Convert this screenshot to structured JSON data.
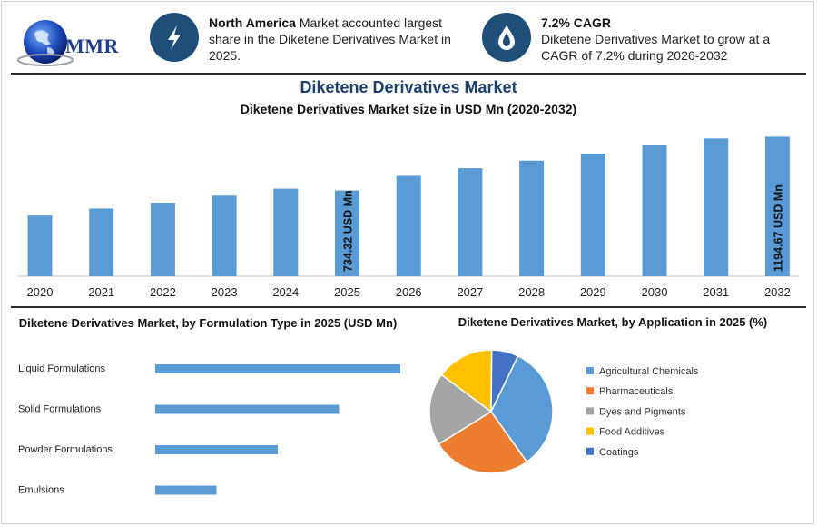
{
  "logo": {
    "text": "MMR"
  },
  "kpis": [
    {
      "icon": "lightning-icon",
      "highlight": "North America",
      "text": " Market accounted largest share in the Diketene Derivatives Market in 2025."
    },
    {
      "icon": "droplet-icon",
      "highlight": "7.2% CAGR",
      "text": "Diketene Derivatives Market to grow at a CAGR of 7.2% during 2026-2032"
    }
  ],
  "header": {
    "title": "Diketene Derivatives Market",
    "subtitle": "Diketene Derivatives Market size in USD Mn (2020-2032)"
  },
  "colors": {
    "bar": "#5b9bd5",
    "accent": "#1f4e79"
  },
  "chart_data": [
    {
      "type": "bar",
      "title": "Diketene Derivatives Market size in USD Mn (2020-2032)",
      "categories": [
        "2020",
        "2021",
        "2022",
        "2023",
        "2024",
        "2025",
        "2026",
        "2027",
        "2028",
        "2029",
        "2030",
        "2031",
        "2032"
      ],
      "values": [
        520,
        580,
        630,
        690,
        750,
        734.32,
        860,
        925,
        990,
        1050,
        1120,
        1180,
        1194.67
      ],
      "data_labels": [
        {
          "category": "2025",
          "text": "734.32 USD Mn"
        },
        {
          "category": "2032",
          "text": "1194.67 USD Mn"
        }
      ],
      "ylim": [
        0,
        1260
      ],
      "grid": false
    },
    {
      "type": "bar",
      "orientation": "horizontal",
      "title": "Diketene Derivatives Market, by Formulation Type in 2025 (USD Mn)",
      "categories": [
        "Liquid Formulations",
        "Solid Formulations",
        "Powder Formulations",
        "Emulsions"
      ],
      "values": [
        100,
        75,
        50,
        25
      ],
      "grid": false
    },
    {
      "type": "pie",
      "title": "Diketene Derivatives Market, by Application in 2025 (%)",
      "labels": [
        "Agricultural Chemicals",
        "Pharmaceuticals",
        "Dyes and Pigments",
        "Food Additives",
        "Coatings"
      ],
      "values": [
        33,
        26,
        19,
        15,
        7
      ],
      "colors": [
        "#5b9bd5",
        "#ed7d31",
        "#a5a5a5",
        "#ffc000",
        "#4472c4"
      ],
      "legend": "right"
    }
  ]
}
